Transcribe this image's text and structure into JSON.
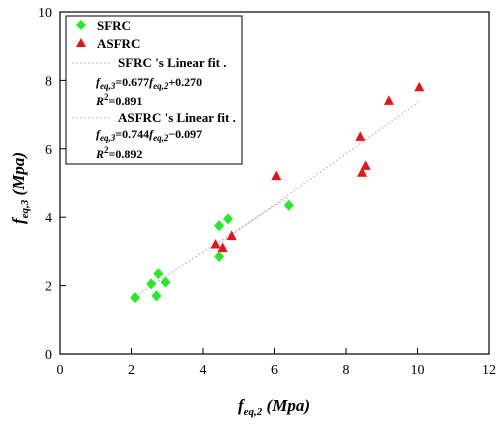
{
  "chart_data": {
    "type": "scatter",
    "xlim": [
      0,
      12
    ],
    "ylim": [
      0,
      10
    ],
    "x_ticks": [
      "0",
      "2",
      "4",
      "6",
      "8",
      "10",
      "12"
    ],
    "y_ticks": [
      "0",
      "2",
      "4",
      "6",
      "8",
      "10"
    ],
    "x_tick_values": [
      0,
      2,
      4,
      6,
      8,
      10,
      12
    ],
    "y_tick_values": [
      0,
      2,
      4,
      6,
      8,
      10
    ],
    "xlabel": {
      "main": "f",
      "sub": "eq,2",
      "unit": " (Mpa)"
    },
    "ylabel": {
      "main": "f",
      "sub": "eq,3",
      "unit": " (Mpa)"
    },
    "grid": false,
    "legend_position": "top-left",
    "series": [
      {
        "name": "SFRC",
        "marker": "diamond",
        "color": "#22ee22",
        "points": [
          [
            2.1,
            1.65
          ],
          [
            2.55,
            2.05
          ],
          [
            2.7,
            1.7
          ],
          [
            2.75,
            2.35
          ],
          [
            2.95,
            2.1
          ],
          [
            4.45,
            2.85
          ],
          [
            4.45,
            3.75
          ],
          [
            4.7,
            3.95
          ],
          [
            6.4,
            4.35
          ]
        ]
      },
      {
        "name": "ASFRC",
        "marker": "triangle",
        "color": "#ee1111",
        "points": [
          [
            4.35,
            3.2
          ],
          [
            4.55,
            3.1
          ],
          [
            4.8,
            3.45
          ],
          [
            6.05,
            5.2
          ],
          [
            8.4,
            6.35
          ],
          [
            8.45,
            5.3
          ],
          [
            8.55,
            5.5
          ],
          [
            9.2,
            7.4
          ],
          [
            10.05,
            7.8
          ]
        ]
      }
    ],
    "fits": [
      {
        "name": "SFRC 's Linear fit .",
        "slope": 0.677,
        "intercept": 0.27,
        "x_range": [
          2.1,
          6.4
        ],
        "color": "#bbbbbb",
        "equation": {
          "lhs": "f",
          "lhs_sub": "eq,3",
          "eq": "=0.677",
          "rhs": "f",
          "rhs_sub": "eq,2",
          "tail": "+0.270"
        },
        "r2": {
          "label": "R",
          "sup": "2",
          "value": "=0.891"
        }
      },
      {
        "name": "ASFRC 's Linear fit .",
        "slope": 0.744,
        "intercept": -0.097,
        "x_range": [
          4.35,
          10.05
        ],
        "color": "#bbbbbb",
        "equation": {
          "lhs": "f",
          "lhs_sub": "eq,3",
          "eq": "=0.744",
          "rhs": "f",
          "rhs_sub": "eq,2",
          "tail": "−0.097"
        },
        "r2": {
          "label": "R",
          "sup": "2",
          "value": "=0.892"
        }
      }
    ]
  }
}
